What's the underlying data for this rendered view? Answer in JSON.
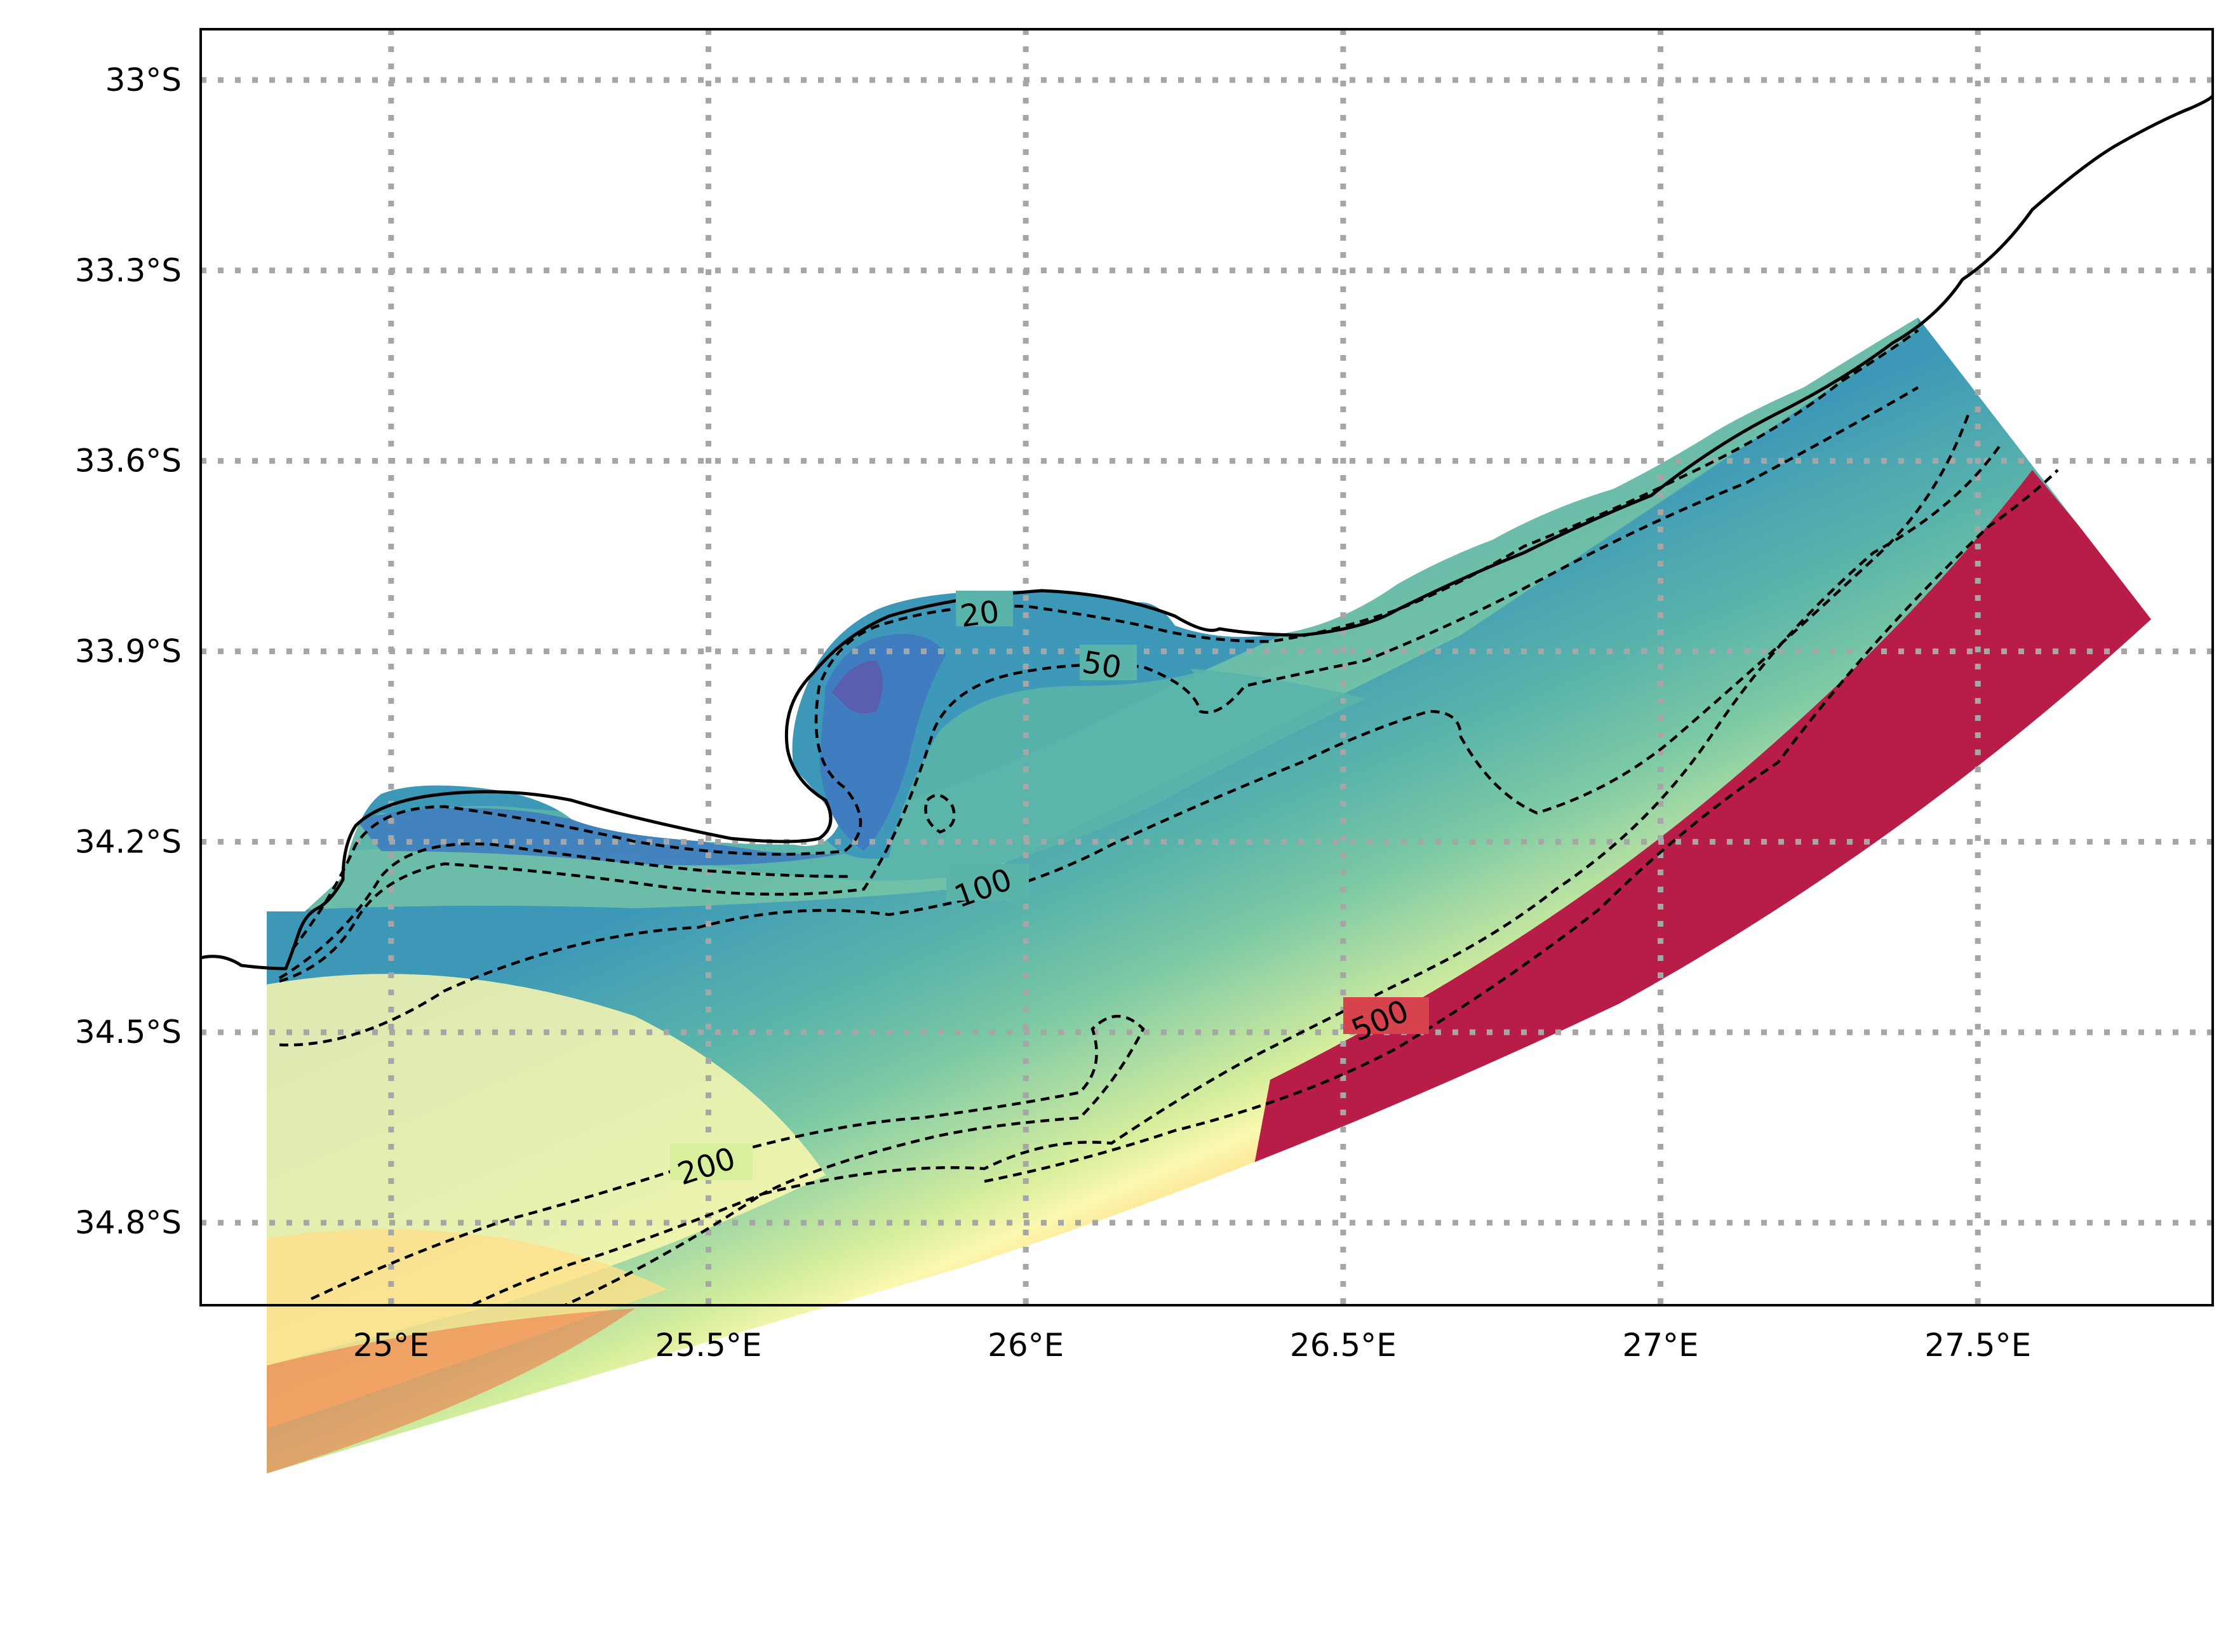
{
  "map": {
    "extent": {
      "lon_min": 24.7,
      "lon_max": 27.87,
      "lat_min": -34.93,
      "lat_max": -32.92
    },
    "x_ticks": [
      {
        "lon": 25.0,
        "label": "25°E"
      },
      {
        "lon": 25.5,
        "label": "25.5°E"
      },
      {
        "lon": 26.0,
        "label": "26°E"
      },
      {
        "lon": 26.5,
        "label": "26.5°E"
      },
      {
        "lon": 27.0,
        "label": "27°E"
      },
      {
        "lon": 27.5,
        "label": "27.5°E"
      }
    ],
    "y_ticks": [
      {
        "lat": -33.0,
        "label": "33°S"
      },
      {
        "lat": -33.3,
        "label": "33.3°S"
      },
      {
        "lat": -33.6,
        "label": "33.6°S"
      },
      {
        "lat": -33.9,
        "label": "33.9°S"
      },
      {
        "lat": -34.2,
        "label": "34.2°S"
      },
      {
        "lat": -34.5,
        "label": "34.5°S"
      },
      {
        "lat": -34.8,
        "label": "34.8°S"
      }
    ],
    "gridlines": "dotted gray",
    "colormap": "Spectral_r (blue shallow → red deep)",
    "colors": {
      "deep": "#b81d47",
      "red": "#d7434c",
      "orange": "#f07948",
      "light_orange": "#fbb369",
      "yellow": "#fee08b",
      "pale_yellow": "#fbf8b0",
      "yellow_green": "#d8ef9c",
      "light_green": "#a9dba3",
      "green": "#7bc9a4",
      "teal": "#5ab4aa",
      "blue_teal": "#3d98b8",
      "blue": "#3f7dc0",
      "purple": "#5a5eae"
    },
    "contour_labels": [
      {
        "text": "20"
      },
      {
        "text": "50"
      },
      {
        "text": "100"
      },
      {
        "text": "200"
      },
      {
        "text": "500"
      }
    ]
  }
}
